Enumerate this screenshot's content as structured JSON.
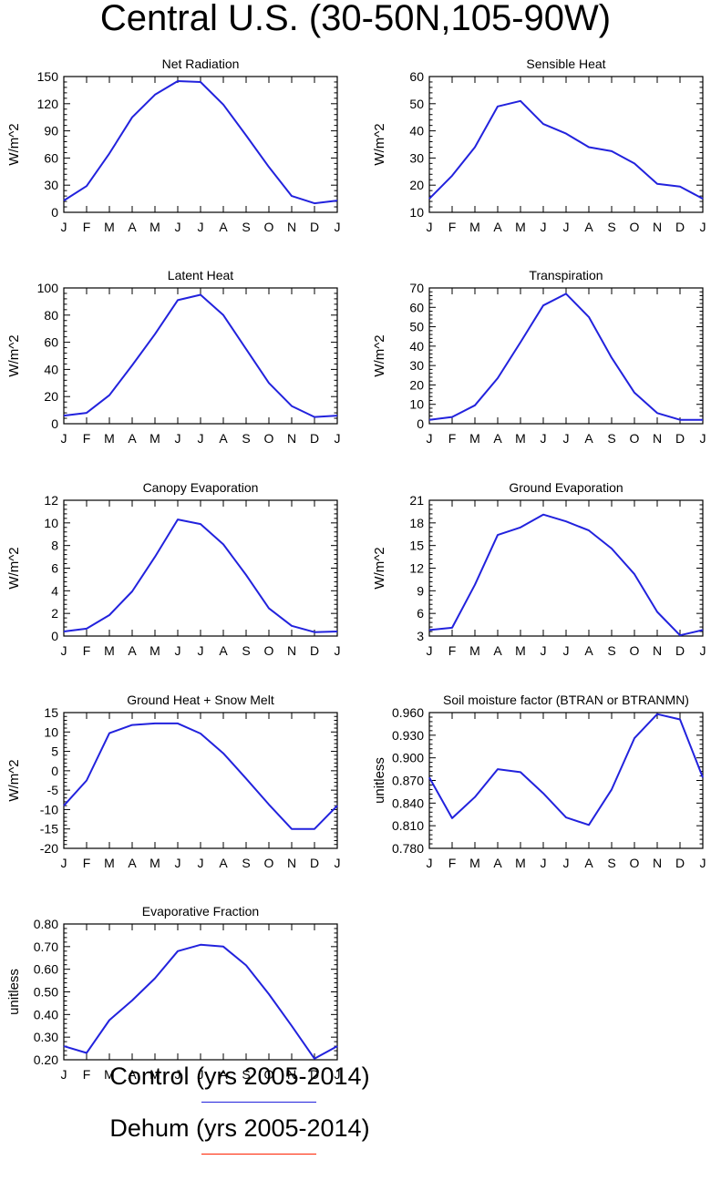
{
  "title": "Central U.S. (30-50N,105-90W)",
  "months": [
    "J",
    "F",
    "M",
    "A",
    "M",
    "J",
    "J",
    "A",
    "S",
    "O",
    "N",
    "D",
    "J"
  ],
  "legend": [
    {
      "label": "Control (yrs 2005-2014)",
      "color": "#2222dd"
    },
    {
      "label": "Dehum (yrs 2005-2014)",
      "color": "#ff2200"
    }
  ],
  "line_color": "#2222dd",
  "chart_data": [
    {
      "type": "line",
      "title": "Net Radiation",
      "ylabel": "W/m^2",
      "ylim": [
        0,
        150
      ],
      "yticks": [
        "0",
        "30",
        "60",
        "90",
        "120",
        "150"
      ],
      "values": [
        13,
        29,
        65,
        105,
        130,
        145,
        144,
        119,
        85,
        50,
        18,
        10,
        13
      ]
    },
    {
      "type": "line",
      "title": "Sensible Heat",
      "ylabel": "W/m^2",
      "ylim": [
        10,
        60
      ],
      "yticks": [
        "10",
        "20",
        "30",
        "40",
        "50",
        "60"
      ],
      "values": [
        15,
        23.5,
        34,
        49,
        51,
        42.5,
        39,
        34,
        32.5,
        28,
        20.5,
        19.5,
        15
      ]
    },
    {
      "type": "line",
      "title": "Latent Heat",
      "ylabel": "W/m^2",
      "ylim": [
        0,
        100
      ],
      "yticks": [
        "0",
        "20",
        "40",
        "60",
        "80",
        "100"
      ],
      "values": [
        6,
        8,
        21,
        43,
        66,
        91,
        95,
        80,
        55,
        30,
        13,
        5,
        6
      ]
    },
    {
      "type": "line",
      "title": "Transpiration",
      "ylabel": "W/m^2",
      "ylim": [
        0,
        70
      ],
      "yticks": [
        "0",
        "10",
        "20",
        "30",
        "40",
        "50",
        "60",
        "70"
      ],
      "values": [
        2,
        3.5,
        9.5,
        23.5,
        42,
        61,
        67,
        55,
        34,
        16,
        5.5,
        2,
        2
      ]
    },
    {
      "type": "line",
      "title": "Canopy Evaporation",
      "ylabel": "W/m^2",
      "ylim": [
        0,
        12
      ],
      "yticks": [
        "0",
        "2",
        "4",
        "6",
        "8",
        "10",
        "12"
      ],
      "values": [
        0.4,
        0.65,
        1.85,
        3.95,
        7,
        10.3,
        9.9,
        8.1,
        5.4,
        2.45,
        0.9,
        0.35,
        0.4
      ]
    },
    {
      "type": "line",
      "title": "Ground Evaporation",
      "ylabel": "W/m^2",
      "ylim": [
        3,
        21
      ],
      "yticks": [
        "3",
        "6",
        "9",
        "12",
        "15",
        "18",
        "21"
      ],
      "values": [
        3.8,
        4.1,
        9.8,
        16.4,
        17.4,
        19.1,
        18.2,
        17,
        14.6,
        11.2,
        6.2,
        3.1,
        3.8
      ]
    },
    {
      "type": "line",
      "title": "Ground Heat + Snow Melt",
      "ylabel": "W/m^2",
      "ylim": [
        -20,
        15
      ],
      "yticks": [
        "-20",
        "-15",
        "-10",
        "-5",
        "0",
        "5",
        "10",
        "15"
      ],
      "values": [
        -9,
        -2.5,
        9.7,
        11.8,
        12.2,
        12.2,
        9.6,
        4.5,
        -2,
        -8.7,
        -15,
        -15,
        -9
      ]
    },
    {
      "type": "line",
      "title": "Soil moisture factor (BTRAN or BTRANMN)",
      "ylabel": "unitless",
      "ylim": [
        0.78,
        0.96
      ],
      "yticks": [
        "0.780",
        "0.810",
        "0.840",
        "0.870",
        "0.900",
        "0.930",
        "0.960"
      ],
      "values": [
        0.874,
        0.82,
        0.848,
        0.885,
        0.881,
        0.853,
        0.821,
        0.811,
        0.858,
        0.926,
        0.958,
        0.951,
        0.874
      ]
    },
    {
      "type": "line",
      "title": "Evaporative Fraction",
      "ylabel": "unitless",
      "ylim": [
        0.2,
        0.8
      ],
      "yticks": [
        "0.20",
        "0.30",
        "0.40",
        "0.50",
        "0.60",
        "0.70",
        "0.80"
      ],
      "values": [
        0.26,
        0.23,
        0.375,
        0.462,
        0.56,
        0.68,
        0.708,
        0.7,
        0.617,
        0.49,
        0.35,
        0.205,
        0.26
      ]
    }
  ]
}
